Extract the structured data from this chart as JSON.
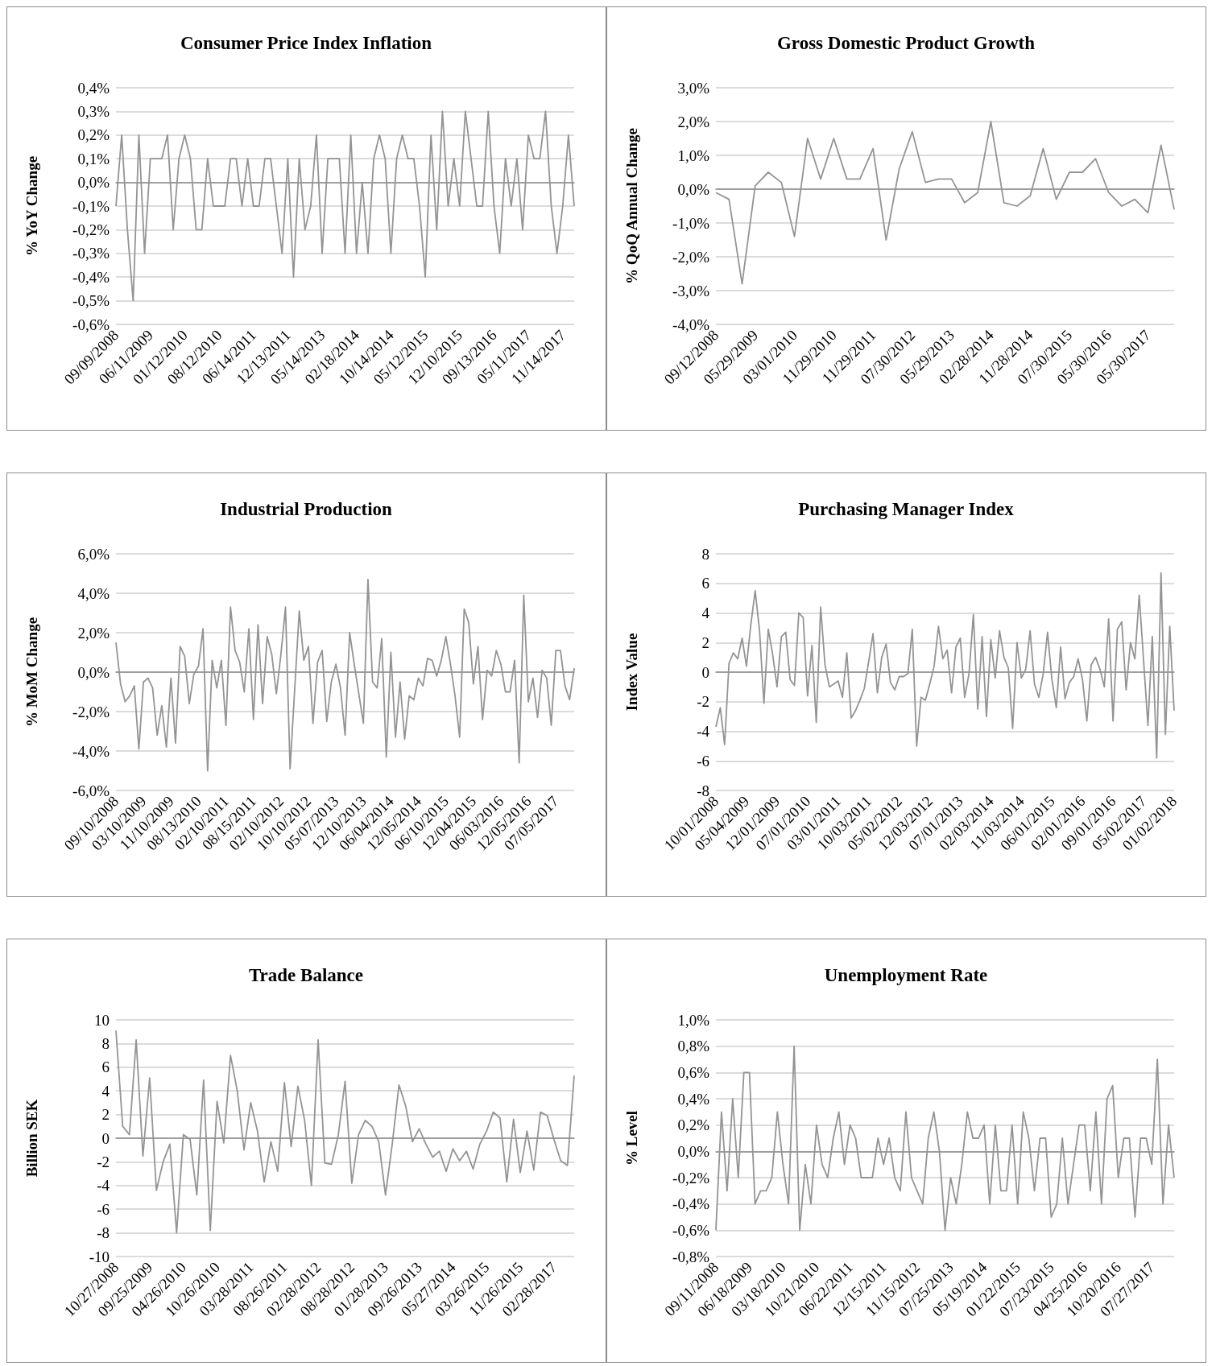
{
  "chart_data": [
    {
      "type": "line",
      "title": "Consumer Price Index Inflation",
      "ylabel": "% YoY Change",
      "color": "#949494",
      "grid": "y",
      "categories": [
        "09/09/2008",
        null,
        null,
        null,
        null,
        null,
        "06/11/2009",
        null,
        null,
        null,
        null,
        null,
        "01/12/2010",
        null,
        null,
        null,
        null,
        null,
        "08/12/2010",
        null,
        null,
        null,
        null,
        null,
        "06/14/2011",
        null,
        null,
        null,
        null,
        null,
        "12/13/2011",
        null,
        null,
        null,
        null,
        null,
        "05/14/2013",
        null,
        null,
        null,
        null,
        null,
        "02/18/2014",
        null,
        null,
        null,
        null,
        null,
        "10/14/2014",
        null,
        null,
        null,
        null,
        null,
        "05/12/2015",
        null,
        null,
        null,
        null,
        null,
        "12/10/2015",
        null,
        null,
        null,
        null,
        null,
        "09/13/2016",
        null,
        null,
        null,
        null,
        null,
        "05/11/2017",
        null,
        null,
        null,
        null,
        null,
        "11/14/2017",
        null,
        null
      ],
      "values": [
        -0.1,
        0.2,
        -0.2,
        -0.5,
        0.2,
        -0.3,
        0.1,
        0.1,
        0.1,
        0.2,
        -0.2,
        0.1,
        0.2,
        0.1,
        -0.2,
        -0.2,
        0.1,
        -0.1,
        -0.1,
        -0.1,
        0.1,
        0.1,
        -0.1,
        0.1,
        -0.1,
        -0.1,
        0.1,
        0.1,
        -0.1,
        -0.3,
        0.1,
        -0.4,
        0.1,
        -0.2,
        -0.1,
        0.2,
        -0.3,
        0.1,
        0.1,
        0.1,
        -0.3,
        0.2,
        -0.3,
        0.0,
        -0.3,
        0.1,
        0.2,
        0.1,
        -0.3,
        0.1,
        0.2,
        0.1,
        0.1,
        -0.1,
        -0.4,
        0.2,
        -0.2,
        0.3,
        -0.1,
        0.1,
        -0.1,
        0.3,
        0.1,
        -0.1,
        -0.1,
        0.3,
        -0.1,
        -0.3,
        0.1,
        -0.1,
        0.1,
        -0.2,
        0.2,
        0.1,
        0.1,
        0.3,
        -0.1,
        -0.3,
        -0.1,
        0.2,
        -0.1
      ],
      "ylim": [
        -0.6,
        0.4
      ],
      "yticks": [
        {
          "value": -0.6,
          "label": "-0,6%"
        },
        {
          "value": -0.5,
          "label": "-0,5%"
        },
        {
          "value": -0.4,
          "label": "-0,4%"
        },
        {
          "value": -0.3,
          "label": "-0,3%"
        },
        {
          "value": -0.2,
          "label": "-0,2%"
        },
        {
          "value": -0.1,
          "label": "-0,1%"
        },
        {
          "value": 0,
          "label": "0,0%"
        },
        {
          "value": 0.1,
          "label": "0,1%"
        },
        {
          "value": 0.2,
          "label": "0,2%"
        },
        {
          "value": 0.3,
          "label": "0,3%"
        },
        {
          "value": 0.4,
          "label": "0,4%"
        }
      ]
    },
    {
      "type": "line",
      "title": "Gross Domestic Product Growth",
      "ylabel": "% QoQ Annual Change",
      "color": "#949494",
      "grid": "y",
      "categories": [
        "09/12/2008",
        null,
        null,
        "05/29/2009",
        null,
        null,
        "03/01/2010",
        null,
        null,
        "11/29/2010",
        null,
        null,
        "11/29/2011",
        null,
        null,
        "07/30/2012",
        null,
        null,
        "05/29/2013",
        null,
        null,
        "02/28/2014",
        null,
        null,
        "11/28/2014",
        null,
        null,
        "07/30/2015",
        null,
        null,
        "05/30/2016",
        null,
        null,
        "05/30/2017",
        null,
        null
      ],
      "values": [
        -0.1,
        -0.3,
        -2.8,
        0.1,
        0.5,
        0.2,
        -1.4,
        1.5,
        0.3,
        1.5,
        0.3,
        0.3,
        1.2,
        -1.5,
        0.6,
        1.7,
        0.2,
        0.3,
        0.3,
        -0.4,
        -0.1,
        2.0,
        -0.4,
        -0.5,
        -0.2,
        1.2,
        -0.3,
        0.5,
        0.5,
        0.9,
        -0.1,
        -0.5,
        -0.3,
        -0.7,
        1.3,
        -0.6
      ],
      "ylim": [
        -4,
        3
      ],
      "yticks": [
        {
          "value": -4,
          "label": "-4,0%"
        },
        {
          "value": -3,
          "label": "-3,0%"
        },
        {
          "value": -2,
          "label": "-2,0%"
        },
        {
          "value": -1,
          "label": "-1,0%"
        },
        {
          "value": 0,
          "label": "0,0%"
        },
        {
          "value": 1,
          "label": "1,0%"
        },
        {
          "value": 2,
          "label": "2,0%"
        },
        {
          "value": 3,
          "label": "3,0%"
        }
      ]
    },
    {
      "type": "line",
      "title": "Industrial Production",
      "ylabel": "% MoM Change",
      "color": "#949494",
      "grid": "y",
      "categories": [
        "09/10/2008",
        null,
        null,
        null,
        null,
        null,
        "03/10/2009",
        null,
        null,
        null,
        null,
        null,
        "11/10/2009",
        null,
        null,
        null,
        null,
        null,
        "08/13/2010",
        null,
        null,
        null,
        null,
        null,
        "02/10/2011",
        null,
        null,
        null,
        null,
        null,
        "08/15/2011",
        null,
        null,
        null,
        null,
        null,
        "02/10/2012",
        null,
        null,
        null,
        null,
        null,
        "10/10/2012",
        null,
        null,
        null,
        null,
        null,
        "05/07/2013",
        null,
        null,
        null,
        null,
        null,
        "12/10/2013",
        null,
        null,
        null,
        null,
        null,
        "06/04/2014",
        null,
        null,
        null,
        null,
        null,
        "12/05/2014",
        null,
        null,
        null,
        null,
        null,
        "06/10/2015",
        null,
        null,
        null,
        null,
        null,
        "12/04/2015",
        null,
        null,
        null,
        null,
        null,
        "06/03/2016",
        null,
        null,
        null,
        null,
        null,
        "12/05/2016",
        null,
        null,
        null,
        null,
        null,
        "07/05/2017",
        null,
        null,
        null,
        null
      ],
      "values": [
        1.5,
        -0.6,
        -1.5,
        -1.2,
        -0.7,
        -3.9,
        -0.5,
        -0.3,
        -0.8,
        -3.2,
        -1.7,
        -3.8,
        -0.3,
        -3.6,
        1.3,
        0.8,
        -1.6,
        -0.1,
        0.3,
        2.2,
        -5.0,
        0.6,
        -0.8,
        0.6,
        -2.7,
        3.3,
        1.1,
        0.5,
        -1.0,
        2.2,
        -2.4,
        2.4,
        -1.6,
        1.8,
        0.9,
        -1.1,
        0.9,
        3.3,
        -4.9,
        -0.9,
        3.1,
        0.6,
        1.3,
        -2.6,
        0.5,
        1.1,
        -2.5,
        -0.5,
        0.4,
        -0.8,
        -3.2,
        2.0,
        0.4,
        -1.1,
        -2.6,
        4.7,
        -0.5,
        -0.8,
        1.7,
        -4.3,
        1.0,
        -3.3,
        -0.5,
        -3.4,
        -1.2,
        -1.4,
        -0.3,
        -0.7,
        0.7,
        0.6,
        -0.2,
        0.6,
        1.8,
        0.4,
        -1.2,
        -3.3,
        3.2,
        2.5,
        -0.6,
        1.3,
        -2.4,
        0.1,
        -0.2,
        1.1,
        0.4,
        -1.0,
        -1.0,
        0.6,
        -4.6,
        3.9,
        -1.5,
        -0.3,
        -2.3,
        0.1,
        -0.3,
        -2.7,
        1.1,
        1.1,
        -0.7,
        -1.4,
        0.2
      ],
      "ylim": [
        -6,
        6
      ],
      "yticks": [
        {
          "value": -6,
          "label": "-6,0%"
        },
        {
          "value": -4,
          "label": "-4,0%"
        },
        {
          "value": -2,
          "label": "-2,0%"
        },
        {
          "value": 0,
          "label": "0,0%"
        },
        {
          "value": 2,
          "label": "2,0%"
        },
        {
          "value": 4,
          "label": "4,0%"
        },
        {
          "value": 6,
          "label": "6,0%"
        }
      ]
    },
    {
      "type": "line",
      "title": "Purchasing Manager Index",
      "ylabel": "Index Value",
      "color": "#949494",
      "grid": "y",
      "categories": [
        "10/01/2008",
        null,
        null,
        null,
        null,
        null,
        null,
        "05/04/2009",
        null,
        null,
        null,
        null,
        null,
        null,
        "12/01/2009",
        null,
        null,
        null,
        null,
        null,
        null,
        "07/01/2010",
        null,
        null,
        null,
        null,
        null,
        null,
        "03/01/2011",
        null,
        null,
        null,
        null,
        null,
        null,
        "10/03/2011",
        null,
        null,
        null,
        null,
        null,
        null,
        "05/02/2012",
        null,
        null,
        null,
        null,
        null,
        null,
        "12/03/2012",
        null,
        null,
        null,
        null,
        null,
        null,
        "07/01/2013",
        null,
        null,
        null,
        null,
        null,
        null,
        "02/03/2014",
        null,
        null,
        null,
        null,
        null,
        null,
        "11/03/2014",
        null,
        null,
        null,
        null,
        null,
        null,
        "06/01/2015",
        null,
        null,
        null,
        null,
        null,
        null,
        "02/01/2016",
        null,
        null,
        null,
        null,
        null,
        null,
        "09/01/2016",
        null,
        null,
        null,
        null,
        null,
        null,
        "05/02/2017",
        null,
        null,
        null,
        null,
        null,
        null,
        "01/02/2018"
      ],
      "values": [
        -3.7,
        -2.4,
        -4.9,
        0.6,
        1.3,
        0.9,
        2.3,
        0.4,
        3.2,
        5.5,
        2.8,
        -2.1,
        2.9,
        1.2,
        -1.0,
        2.4,
        2.7,
        -0.5,
        -0.9,
        4.0,
        3.7,
        -1.6,
        1.8,
        -3.4,
        4.4,
        0.5,
        -1.0,
        -0.8,
        -0.6,
        -1.7,
        1.3,
        -3.1,
        -2.6,
        -1.9,
        -1.1,
        0.7,
        2.6,
        -1.4,
        1.0,
        1.9,
        -0.7,
        -1.2,
        -0.3,
        -0.3,
        -0.1,
        2.9,
        -5.0,
        -1.7,
        -1.9,
        -0.8,
        0.4,
        3.1,
        0.9,
        1.5,
        -1.4,
        1.7,
        2.3,
        -1.7,
        -0.1,
        3.9,
        -2.5,
        2.4,
        -3.0,
        2.2,
        -0.4,
        2.8,
        1.0,
        0.3,
        -3.8,
        2.0,
        -0.4,
        0.2,
        2.8,
        -0.8,
        -1.7,
        -0.1,
        2.7,
        -0.5,
        -2.4,
        1.7,
        -1.8,
        -0.7,
        -0.3,
        0.9,
        -0.5,
        -3.3,
        0.5,
        1.0,
        0.2,
        -1.0,
        3.6,
        -3.3,
        2.9,
        3.4,
        -1.2,
        2.0,
        0.9,
        5.2,
        0.8,
        -3.6,
        2.4,
        -5.8,
        6.7,
        -4.2,
        3.1,
        -2.6
      ],
      "ylim": [
        -8,
        8
      ],
      "yticks": [
        -8,
        -6,
        -4,
        -2,
        0,
        2,
        4,
        6,
        8
      ]
    },
    {
      "type": "line",
      "title": "Trade Balance",
      "ylabel": "Billion SEK",
      "color": "#949494",
      "grid": "y",
      "categories": [
        "10/27/2008",
        null,
        null,
        null,
        null,
        "09/25/2009",
        null,
        null,
        null,
        null,
        "04/26/2010",
        null,
        null,
        null,
        null,
        "10/26/2010",
        null,
        null,
        null,
        null,
        "03/28/2011",
        null,
        null,
        null,
        null,
        "08/26/2011",
        null,
        null,
        null,
        null,
        "02/28/2012",
        null,
        null,
        null,
        null,
        "08/28/2012",
        null,
        null,
        null,
        null,
        "01/28/2013",
        null,
        null,
        null,
        null,
        "09/26/2013",
        null,
        null,
        null,
        null,
        "05/27/2014",
        null,
        null,
        null,
        null,
        "03/26/2015",
        null,
        null,
        null,
        null,
        "11/26/2015",
        null,
        null,
        null,
        null,
        "02/28/2017",
        null,
        null,
        null
      ],
      "values": [
        9.1,
        1.0,
        0.3,
        8.3,
        -1.5,
        5.1,
        -4.4,
        -2.0,
        -0.5,
        -8.0,
        0.3,
        -0.1,
        -4.8,
        4.9,
        -7.8,
        3.1,
        -0.4,
        7.0,
        4.0,
        -1.0,
        3.0,
        0.6,
        -3.7,
        -0.3,
        -2.8,
        4.7,
        -0.7,
        4.4,
        1.5,
        -4.0,
        8.3,
        -2.1,
        -2.2,
        0.3,
        4.8,
        -3.8,
        0.3,
        1.5,
        1.0,
        -0.3,
        -4.8,
        -0.5,
        4.5,
        2.7,
        -0.3,
        0.8,
        -0.5,
        -1.6,
        -1.1,
        -2.8,
        -0.9,
        -1.9,
        -1.1,
        -2.6,
        -0.5,
        0.6,
        2.2,
        1.7,
        -3.7,
        1.6,
        -2.9,
        0.6,
        -2.7,
        2.2,
        1.9,
        -0.1,
        -1.9,
        -2.3,
        5.3
      ],
      "ylim": [
        -10,
        10
      ],
      "yticks": [
        -10,
        -8,
        -6,
        -4,
        -2,
        0,
        2,
        4,
        6,
        8,
        10
      ]
    },
    {
      "type": "line",
      "title": "Unemployment Rate",
      "ylabel": "% Level",
      "color": "#949494",
      "grid": "y",
      "categories": [
        "09/11/2008",
        null,
        null,
        null,
        null,
        null,
        "06/18/2009",
        null,
        null,
        null,
        null,
        null,
        "03/18/2010",
        null,
        null,
        null,
        null,
        null,
        "10/21/2010",
        null,
        null,
        null,
        null,
        null,
        "06/22/2011",
        null,
        null,
        null,
        null,
        null,
        "12/15/2011",
        null,
        null,
        null,
        null,
        null,
        "11/15/2012",
        null,
        null,
        null,
        null,
        null,
        "07/25/2013",
        null,
        null,
        null,
        null,
        null,
        "05/19/2014",
        null,
        null,
        null,
        null,
        null,
        "01/22/2015",
        null,
        null,
        null,
        null,
        null,
        "07/23/2015",
        null,
        null,
        null,
        null,
        null,
        "04/25/2016",
        null,
        null,
        null,
        null,
        null,
        "10/20/2016",
        null,
        null,
        null,
        null,
        null,
        "07/27/2017",
        null,
        null,
        null,
        null
      ],
      "values": [
        -0.6,
        0.3,
        -0.3,
        0.4,
        -0.2,
        0.6,
        0.6,
        -0.4,
        -0.3,
        -0.3,
        -0.2,
        0.3,
        -0.1,
        -0.4,
        0.8,
        -0.6,
        -0.1,
        -0.4,
        0.2,
        -0.1,
        -0.2,
        0.1,
        0.3,
        -0.1,
        0.2,
        0.1,
        -0.2,
        -0.2,
        -0.2,
        0.1,
        -0.1,
        0.1,
        -0.2,
        -0.3,
        0.3,
        -0.2,
        -0.3,
        -0.4,
        0.1,
        0.3,
        0.0,
        -0.6,
        -0.2,
        -0.4,
        -0.1,
        0.3,
        0.1,
        0.1,
        0.2,
        -0.4,
        0.2,
        -0.3,
        -0.3,
        0.2,
        -0.4,
        0.3,
        0.1,
        -0.3,
        0.1,
        0.1,
        -0.5,
        -0.4,
        0.1,
        -0.4,
        -0.1,
        0.2,
        0.2,
        -0.3,
        0.3,
        -0.4,
        0.4,
        0.5,
        -0.2,
        0.1,
        0.1,
        -0.5,
        0.1,
        0.1,
        -0.1,
        0.7,
        -0.4,
        0.2,
        -0.2
      ],
      "ylim": [
        -0.8,
        1.0
      ],
      "yticks": [
        {
          "value": -0.8,
          "label": "-0,8%"
        },
        {
          "value": -0.6,
          "label": "-0,6%"
        },
        {
          "value": -0.4,
          "label": "-0,4%"
        },
        {
          "value": -0.2,
          "label": "-0,2%"
        },
        {
          "value": 0,
          "label": "0,0%"
        },
        {
          "value": 0.2,
          "label": "0,2%"
        },
        {
          "value": 0.4,
          "label": "0,4%"
        },
        {
          "value": 0.6,
          "label": "0,6%"
        },
        {
          "value": 0.8,
          "label": "0,8%"
        },
        {
          "value": 1.0,
          "label": "1,0%"
        }
      ]
    }
  ]
}
